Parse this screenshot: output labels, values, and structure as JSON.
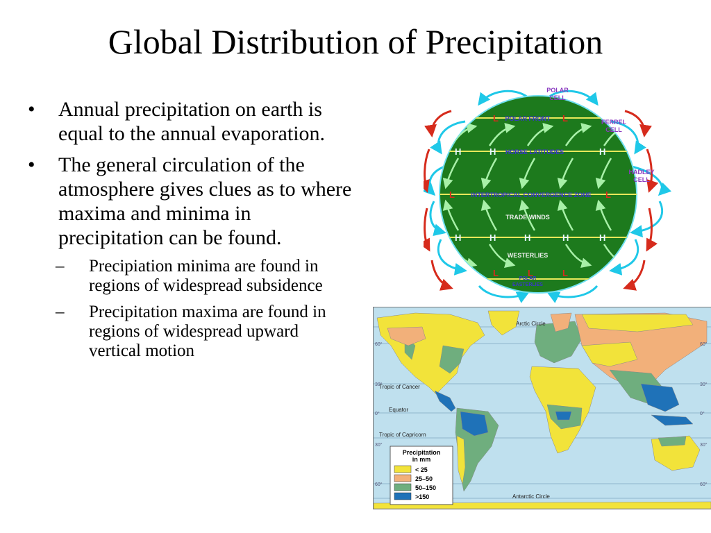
{
  "title": "Global Distribution of Precipitation",
  "bullets": [
    {
      "text": "Annual precipitation on earth is equal to the annual evaporation."
    },
    {
      "text": "The general circulation of the atmosphere gives clues as to where maxima and minima in precipitation can be found.",
      "sub": [
        "Precipiation minima are found in regions of widespread subsidence",
        "Precipitation maxima are found in regions of widespread upward vertical motion"
      ]
    }
  ],
  "diagram": {
    "cells": {
      "polar_1": "POLAR",
      "polar_2": "CELL",
      "ferrel_1": "FERREL",
      "ferrel_2": "CELL",
      "hadley_1": "HADLEY",
      "hadley_2": "CELL"
    },
    "zones": {
      "polar_front": "POLAR FRONT",
      "horse_latitudes": "HORSE LATITUDES",
      "itcz": "INTERTROPICAL CONVERGENCE ZONE",
      "trade_winds": "TRADE WINDS",
      "westerlies": "WESTERLIES",
      "polar_easterlies_1": "POLAR",
      "polar_easterlies_2": "EASTERLIES"
    },
    "high": "H",
    "low": "L",
    "colors": {
      "globe": "#1d7a1d",
      "arrow_cold": "#1fc8e8",
      "arrow_warm": "#d62b1c",
      "band": "#e8e85a",
      "label": "#3838c8",
      "cell_label": "#8a3ac0"
    }
  },
  "map": {
    "circles": {
      "arctic": "Arctic Circle",
      "cancer": "Tropic of Cancer",
      "equator": "Equator",
      "capricorn": "Tropic of Capricorn",
      "antarctic": "Antarctic Circle"
    },
    "lat_labels": [
      "60°",
      "30°",
      "0°",
      "30°",
      "60°"
    ],
    "legend": {
      "title_1": "Precipitation",
      "title_2": "in mm",
      "items": [
        {
          "label": "< 25",
          "color": "#f2e33a"
        },
        {
          "label": "25–50",
          "color": "#f2b07a"
        },
        {
          "label": "50–150",
          "color": "#6fae7e"
        },
        {
          "label": ">150",
          "color": "#1f72b8"
        }
      ]
    },
    "colors": {
      "ocean": "#bfe0ee",
      "grid": "#8fb6cc"
    }
  }
}
